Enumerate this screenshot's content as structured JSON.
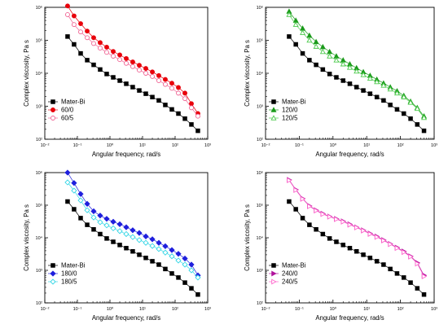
{
  "chart_data": [
    {
      "type": "line",
      "xlabel": "Angular frequency, rad/s",
      "ylabel": "Complex viscosity, Pa s",
      "xscale": "log",
      "yscale": "log",
      "xlim": [
        0.01,
        1000
      ],
      "ylim": [
        100,
        1000000
      ],
      "x_ticks": [
        "10⁻²",
        "10⁻¹",
        "10⁰",
        "10¹",
        "10²",
        "10³"
      ],
      "y_ticks": [
        "10²",
        "10³",
        "10⁴",
        "10⁵",
        "10⁶"
      ],
      "legend_position": "bottom-left",
      "x": [
        0.05,
        0.079,
        0.126,
        0.2,
        0.316,
        0.5,
        0.794,
        1.26,
        2,
        3.16,
        5,
        7.94,
        12.6,
        20,
        31.6,
        50,
        79.4,
        126,
        200,
        316,
        500
      ],
      "series": [
        {
          "name": "Mater-Bi",
          "marker": "square",
          "filled": true,
          "color": "#000000",
          "values": [
            130000,
            75000,
            40000,
            25000,
            18000,
            13000,
            9500,
            7500,
            6000,
            4800,
            3800,
            3000,
            2400,
            1900,
            1500,
            1100,
            800,
            600,
            420,
            280,
            180
          ]
        },
        {
          "name": "60/0",
          "marker": "circle",
          "filled": true,
          "color": "#e8000b",
          "values": [
            1100000,
            550000,
            320000,
            190000,
            120000,
            85000,
            62000,
            46000,
            36000,
            28000,
            22000,
            17500,
            14000,
            11000,
            8500,
            6500,
            5000,
            3700,
            2500,
            1200,
            600
          ]
        },
        {
          "name": "60/5",
          "marker": "circle",
          "filled": false,
          "color": "#f06292",
          "values": [
            600000,
            300000,
            180000,
            120000,
            80000,
            58000,
            43000,
            33000,
            26000,
            20000,
            16000,
            12500,
            10000,
            8000,
            6000,
            4600,
            3500,
            2500,
            1700,
            900,
            500
          ]
        }
      ]
    },
    {
      "type": "line",
      "xlabel": "Angular frequency, rad/s",
      "ylabel": "Complex viscosity, Pa s",
      "xscale": "log",
      "yscale": "log",
      "xlim": [
        0.01,
        1000
      ],
      "ylim": [
        100,
        1000000
      ],
      "x_ticks": [
        "10⁻²",
        "10⁻¹",
        "10⁰",
        "10¹",
        "10²",
        "10³"
      ],
      "y_ticks": [
        "10²",
        "10³",
        "10⁴",
        "10⁵",
        "10⁶"
      ],
      "legend_position": "bottom-left",
      "x": [
        0.05,
        0.079,
        0.126,
        0.2,
        0.316,
        0.5,
        0.794,
        1.26,
        2,
        3.16,
        5,
        7.94,
        12.6,
        20,
        31.6,
        50,
        79.4,
        126,
        200,
        316,
        500
      ],
      "series": [
        {
          "name": "Mater-Bi",
          "marker": "square",
          "filled": true,
          "color": "#000000",
          "values": [
            130000,
            75000,
            40000,
            25000,
            18000,
            13000,
            9500,
            7500,
            6000,
            4800,
            3800,
            3000,
            2400,
            1900,
            1500,
            1100,
            800,
            600,
            420,
            280,
            180
          ]
        },
        {
          "name": "120/0",
          "marker": "triangle-up",
          "filled": true,
          "color": "#1a9a1a",
          "values": [
            750000,
            400000,
            230000,
            140000,
            90000,
            63000,
            45000,
            33000,
            25000,
            19000,
            14500,
            11000,
            8500,
            6500,
            5000,
            3800,
            2900,
            2100,
            1400,
            900,
            500
          ]
        },
        {
          "name": "120/5",
          "marker": "triangle-up",
          "filled": false,
          "color": "#4cc94c",
          "values": [
            600000,
            300000,
            170000,
            100000,
            65000,
            45000,
            33000,
            25000,
            19000,
            15000,
            11500,
            9000,
            7000,
            5500,
            4300,
            3300,
            2500,
            1900,
            1300,
            850,
            450
          ]
        }
      ]
    },
    {
      "type": "line",
      "xlabel": "Angular frequency, rad/s",
      "ylabel": "Complex viscosity, Pa s",
      "xscale": "log",
      "yscale": "log",
      "xlim": [
        0.01,
        1000
      ],
      "ylim": [
        100,
        1000000
      ],
      "x_ticks": [
        "10⁻²",
        "10⁻¹",
        "10⁰",
        "10¹",
        "10²",
        "10³"
      ],
      "y_ticks": [
        "10²",
        "10³",
        "10⁴",
        "10⁵",
        "10⁶"
      ],
      "legend_position": "bottom-left",
      "x": [
        0.05,
        0.079,
        0.126,
        0.2,
        0.316,
        0.5,
        0.794,
        1.26,
        2,
        3.16,
        5,
        7.94,
        12.6,
        20,
        31.6,
        50,
        79.4,
        126,
        200,
        316,
        500
      ],
      "series": [
        {
          "name": "Mater-Bi",
          "marker": "square",
          "filled": true,
          "color": "#000000",
          "values": [
            130000,
            75000,
            40000,
            25000,
            18000,
            13000,
            9500,
            7500,
            6000,
            4800,
            3800,
            3000,
            2400,
            1900,
            1500,
            1100,
            800,
            600,
            420,
            280,
            180
          ]
        },
        {
          "name": "180/0",
          "marker": "diamond",
          "filled": true,
          "color": "#1f1fdd",
          "values": [
            1000000,
            480000,
            220000,
            110000,
            65000,
            48000,
            38000,
            31000,
            26000,
            21000,
            17000,
            14000,
            11000,
            9000,
            7000,
            5500,
            4200,
            3200,
            2300,
            1500,
            700
          ]
        },
        {
          "name": "180/5",
          "marker": "diamond",
          "filled": false,
          "color": "#35d6e6",
          "values": [
            500000,
            280000,
            140000,
            70000,
            42000,
            30000,
            24000,
            19500,
            16000,
            13000,
            10500,
            8500,
            7000,
            5600,
            4500,
            3500,
            2700,
            2000,
            1500,
            1000,
            600
          ]
        }
      ]
    },
    {
      "type": "line",
      "xlabel": "Angular frequency, rad/s",
      "ylabel": "Complex viscosity, Pa s",
      "xscale": "log",
      "yscale": "log",
      "xlim": [
        0.01,
        1000
      ],
      "ylim": [
        100,
        1000000
      ],
      "x_ticks": [
        "10⁻²",
        "10⁻¹",
        "10⁰",
        "10¹",
        "10²",
        "10³"
      ],
      "y_ticks": [
        "10²",
        "10³",
        "10⁴",
        "10⁵",
        "10⁶"
      ],
      "legend_position": "bottom-left",
      "x": [
        0.05,
        0.079,
        0.126,
        0.2,
        0.316,
        0.5,
        0.794,
        1.26,
        2,
        3.16,
        5,
        7.94,
        12.6,
        20,
        31.6,
        50,
        79.4,
        126,
        200,
        316,
        500
      ],
      "series": [
        {
          "name": "Mater-Bi",
          "marker": "square",
          "filled": true,
          "color": "#000000",
          "values": [
            130000,
            75000,
            40000,
            25000,
            18000,
            13000,
            9500,
            7500,
            6000,
            4800,
            3800,
            3000,
            2400,
            1900,
            1500,
            1100,
            800,
            600,
            420,
            280,
            180
          ]
        },
        {
          "name": "240/0",
          "marker": "triangle-right",
          "filled": true,
          "color": "#b0139c",
          "values": [
            600000,
            300000,
            160000,
            95000,
            70000,
            55000,
            45000,
            38000,
            32000,
            26000,
            21000,
            17000,
            13500,
            11000,
            8500,
            6500,
            5000,
            3800,
            2700,
            1700,
            700
          ]
        },
        {
          "name": "240/5",
          "marker": "triangle-right",
          "filled": false,
          "color": "#ff66cc",
          "values": [
            580000,
            290000,
            155000,
            92000,
            68000,
            53000,
            44000,
            37000,
            31000,
            25000,
            20500,
            16500,
            13000,
            10500,
            8200,
            6300,
            4800,
            3600,
            2600,
            1600,
            650
          ]
        }
      ]
    }
  ]
}
